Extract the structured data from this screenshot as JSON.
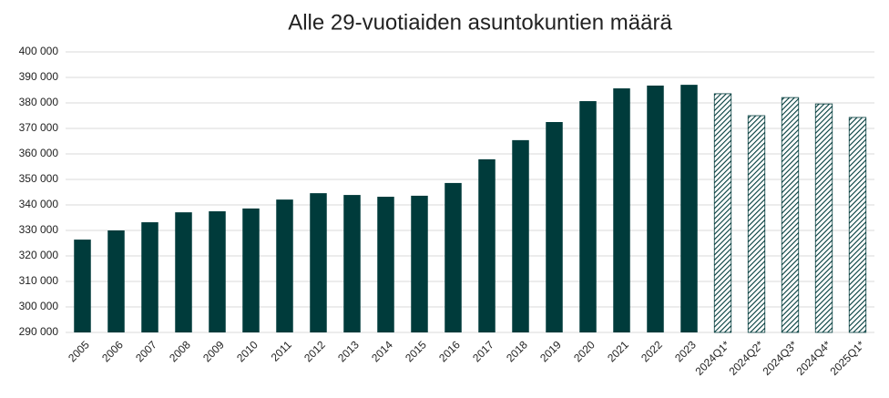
{
  "chart_data": {
    "type": "bar",
    "title": "Alle 29-vuotiaiden asuntokuntien määrä",
    "categories": [
      "2005",
      "2006",
      "2007",
      "2008",
      "2009",
      "2010",
      "2011",
      "2012",
      "2013",
      "2014",
      "2015",
      "2016",
      "2017",
      "2018",
      "2019",
      "2020",
      "2021",
      "2022",
      "2023",
      "2024Q1*",
      "2024Q2*",
      "2024Q3*",
      "2024Q4*",
      "2025Q1*"
    ],
    "values": [
      326400,
      330000,
      333200,
      337100,
      337500,
      338600,
      342100,
      344600,
      343900,
      343200,
      343600,
      348600,
      357900,
      365400,
      372500,
      380700,
      385700,
      386800,
      387100,
      383600,
      375000,
      382100,
      379600,
      374300
    ],
    "hatch": [
      false,
      false,
      false,
      false,
      false,
      false,
      false,
      false,
      false,
      false,
      false,
      false,
      false,
      false,
      false,
      false,
      false,
      false,
      false,
      true,
      true,
      true,
      true,
      true
    ],
    "color": "#003b3b",
    "ylim": [
      290000,
      400000
    ],
    "yticks": [
      {
        "value": 290000,
        "label": "290 000"
      },
      {
        "value": 300000,
        "label": "300 000"
      },
      {
        "value": 310000,
        "label": "310 000"
      },
      {
        "value": 320000,
        "label": "320 000"
      },
      {
        "value": 330000,
        "label": "330 000"
      },
      {
        "value": 340000,
        "label": "340 000"
      },
      {
        "value": 350000,
        "label": "350 000"
      },
      {
        "value": 360000,
        "label": "360 000"
      },
      {
        "value": 370000,
        "label": "370 000"
      },
      {
        "value": 380000,
        "label": "380 000"
      },
      {
        "value": 390000,
        "label": "390 000"
      },
      {
        "value": 400000,
        "label": "400 000"
      }
    ],
    "grid": true
  }
}
